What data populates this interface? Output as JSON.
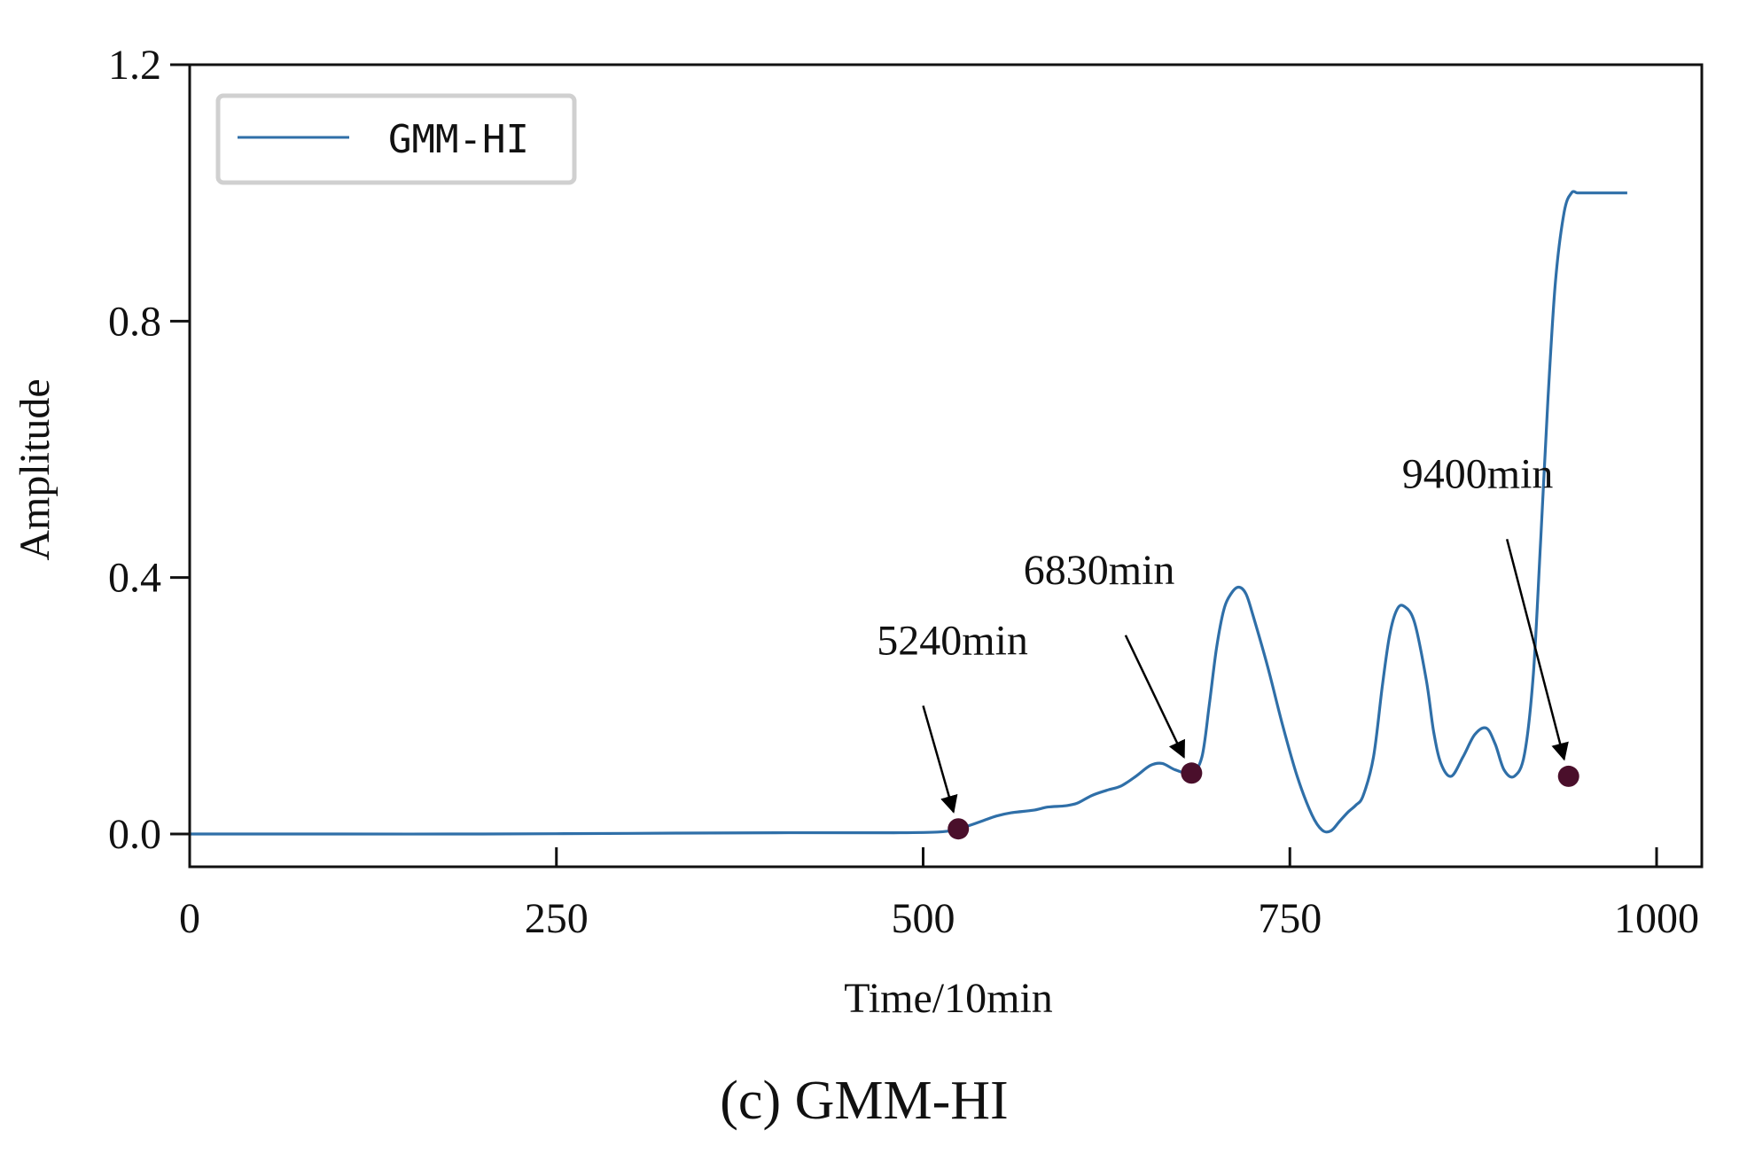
{
  "figure": {
    "caption": "(c) GMM-HI"
  },
  "colors": {
    "series": "#2f6fa8",
    "marker": "#4a0f2b",
    "axes": "#111111",
    "legend_border": "#d0d0d0"
  },
  "chart_data": {
    "type": "line",
    "title": "",
    "xlabel": "Time/10min",
    "ylabel": "Amplitude",
    "xlim": [
      0,
      1030
    ],
    "ylim": [
      -0.05,
      1.2
    ],
    "xticks": [
      0,
      250,
      500,
      750,
      1000
    ],
    "xtick_labels": [
      "0",
      "250",
      "500",
      "750",
      "1000"
    ],
    "yticks": [
      0.0,
      0.4,
      0.8,
      1.2
    ],
    "ytick_labels": [
      "0.0",
      "0.4",
      "0.8",
      "1.2"
    ],
    "grid": false,
    "legend": {
      "position": "top-left",
      "entries": [
        "GMM-HI"
      ]
    },
    "series": [
      {
        "name": "GMM-HI",
        "x": [
          0,
          100,
          200,
          300,
          400,
          480,
          510,
          524,
          530,
          540,
          550,
          560,
          575,
          585,
          597,
          605,
          615,
          625,
          635,
          645,
          655,
          663,
          672,
          683,
          690,
          695,
          700,
          705,
          710,
          715,
          720,
          725,
          735,
          745,
          755,
          765,
          772,
          778,
          784,
          790,
          795,
          800,
          807,
          813,
          818,
          823,
          828,
          835,
          843,
          848,
          853,
          860,
          868,
          876,
          884,
          890,
          896,
          903,
          910,
          916,
          921,
          926,
          931,
          937,
          942,
          946,
          950,
          955,
          960,
          964,
          968,
          972,
          976,
          980
        ],
        "y": [
          0.0,
          0.0,
          0.0,
          0.001,
          0.002,
          0.002,
          0.003,
          0.007,
          0.012,
          0.02,
          0.028,
          0.033,
          0.037,
          0.042,
          0.044,
          0.048,
          0.06,
          0.068,
          0.075,
          0.09,
          0.107,
          0.11,
          0.1,
          0.095,
          0.12,
          0.2,
          0.29,
          0.35,
          0.375,
          0.385,
          0.375,
          0.34,
          0.26,
          0.17,
          0.09,
          0.03,
          0.006,
          0.005,
          0.02,
          0.035,
          0.045,
          0.06,
          0.12,
          0.23,
          0.31,
          0.35,
          0.355,
          0.33,
          0.24,
          0.16,
          0.11,
          0.09,
          0.12,
          0.155,
          0.165,
          0.14,
          0.1,
          0.09,
          0.125,
          0.25,
          0.46,
          0.68,
          0.86,
          0.97,
          1.0,
          1.0,
          1.0,
          1.0,
          1.0,
          1.0,
          1.0,
          1.0,
          1.0,
          1.0
        ]
      }
    ],
    "annotations": [
      {
        "text": "5240min",
        "x": 524,
        "y": 0.008,
        "text_x": 520,
        "text_y": 0.28,
        "tail_x": 500,
        "tail_y": 0.2
      },
      {
        "text": "6830min",
        "x": 683,
        "y": 0.095,
        "text_x": 620,
        "text_y": 0.39,
        "tail_x": 638,
        "tail_y": 0.31
      },
      {
        "text": "9400min",
        "x": 940,
        "y": 0.09,
        "text_x": 878,
        "text_y": 0.54,
        "tail_x": 898,
        "tail_y": 0.46
      }
    ]
  }
}
